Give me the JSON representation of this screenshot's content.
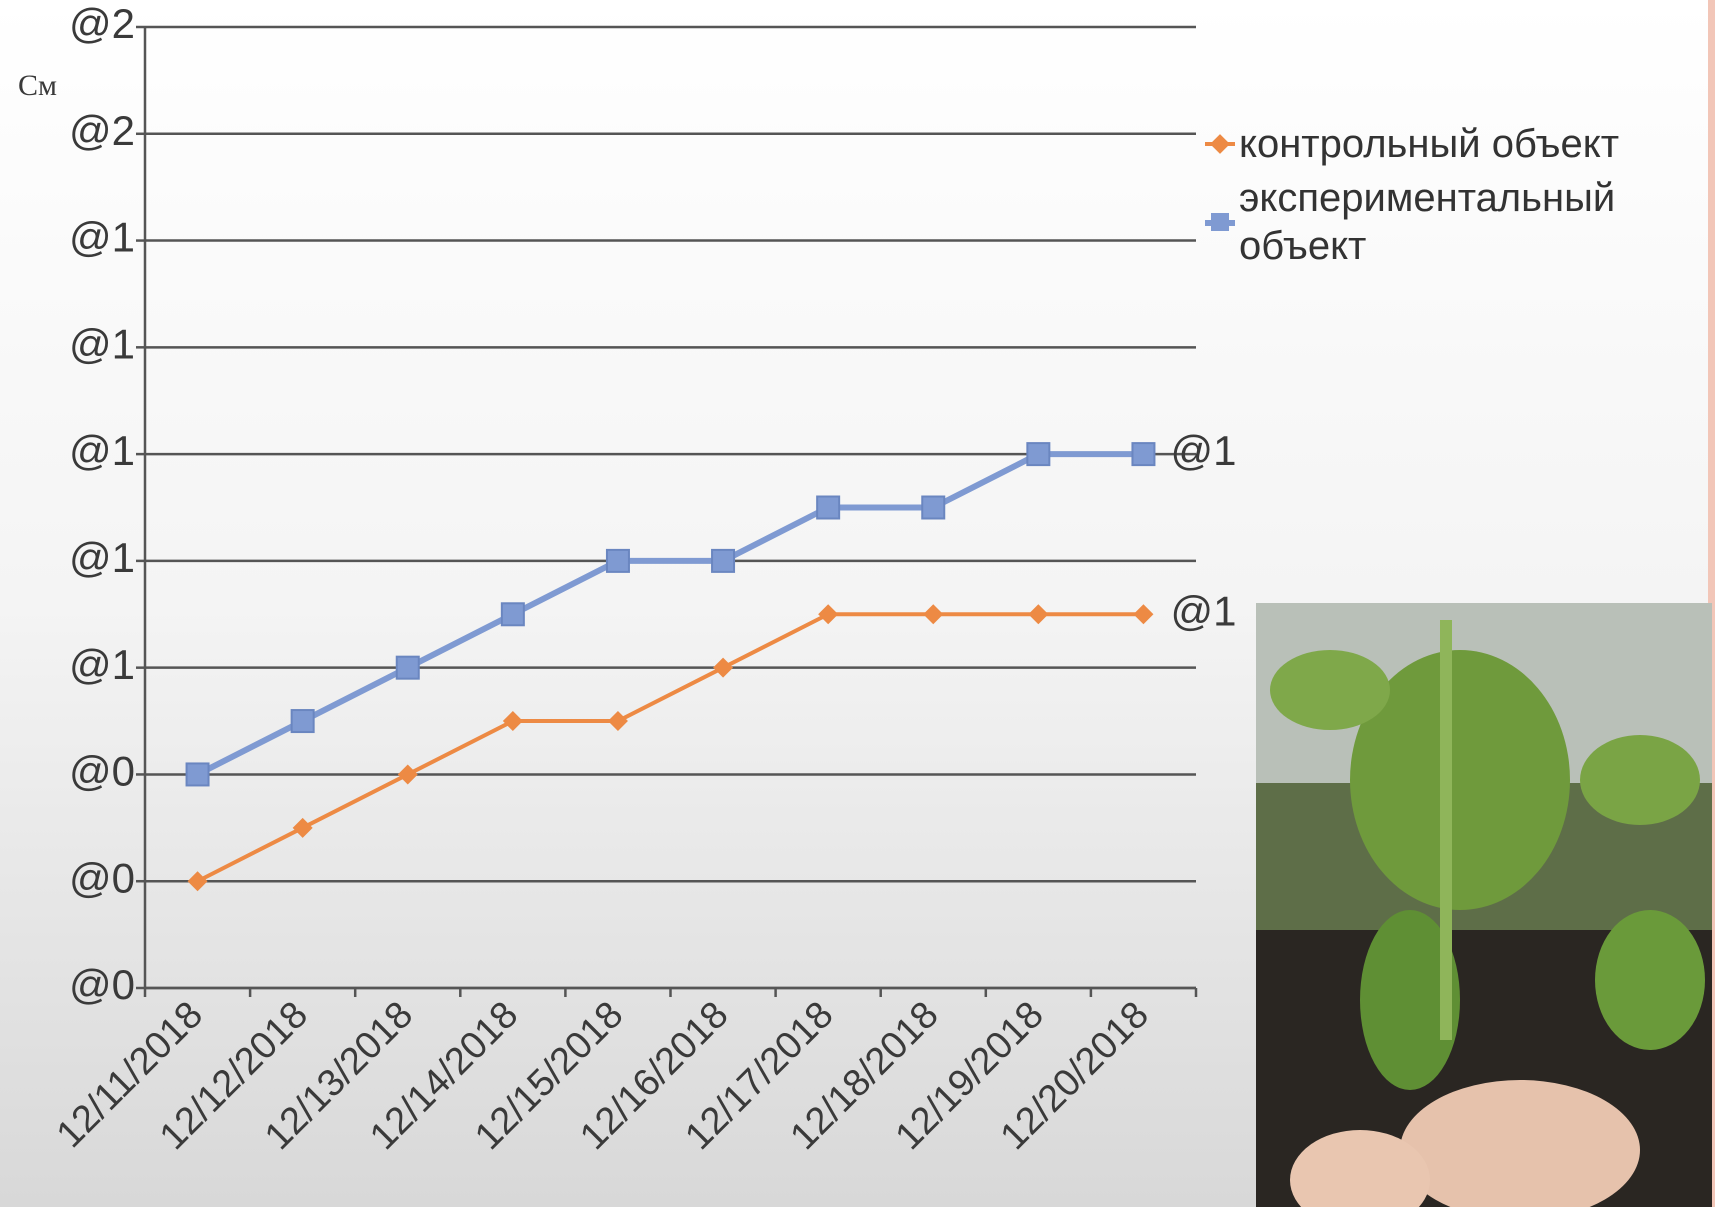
{
  "chart_data": {
    "type": "line",
    "y_label": "См",
    "categories": [
      "12/11/2018",
      "12/12/2018",
      "12/13/2018",
      "12/14/2018",
      "12/15/2018",
      "12/16/2018",
      "12/17/2018",
      "12/18/2018",
      "12/19/2018",
      "12/20/2018"
    ],
    "series": [
      {
        "name": "контрольный объект",
        "color": "#ed8a44",
        "marker": "diamond",
        "values": [
          0.2,
          0.3,
          0.4,
          0.5,
          0.5,
          0.6,
          0.7,
          0.7,
          0.7,
          0.7
        ],
        "value_labels": [
          null,
          null,
          null,
          null,
          null,
          null,
          null,
          null,
          null,
          "@1"
        ]
      },
      {
        "name": "экспериментальный объект",
        "color": "#7f9ad2",
        "marker": "square",
        "values": [
          0.4,
          0.5,
          0.6,
          0.7,
          0.8,
          0.8,
          0.9,
          0.9,
          1.0,
          1.0
        ],
        "value_labels": [
          null,
          null,
          null,
          null,
          null,
          null,
          null,
          null,
          null,
          "@1"
        ]
      }
    ],
    "ylim": [
      0,
      1.8
    ],
    "yticks": [
      {
        "value": 0,
        "label": "@0"
      },
      {
        "value": 0.2,
        "label": "@0"
      },
      {
        "value": 0.4,
        "label": "@0"
      },
      {
        "value": 0.6,
        "label": "@1"
      },
      {
        "value": 0.8,
        "label": "@1"
      },
      {
        "value": 1.0,
        "label": "@1"
      },
      {
        "value": 1.2,
        "label": "@1"
      },
      {
        "value": 1.4,
        "label": "@1"
      },
      {
        "value": 1.6,
        "label": "@2"
      },
      {
        "value": 1.8,
        "label": "@2"
      }
    ],
    "grid": true,
    "legend": "right"
  }
}
